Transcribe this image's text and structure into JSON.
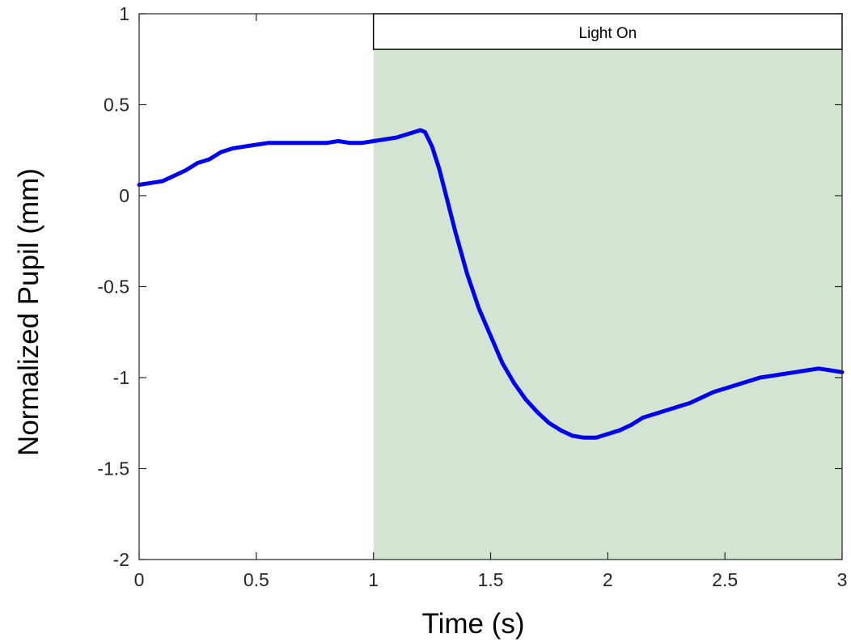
{
  "chart_data": {
    "type": "line",
    "title": "",
    "xlabel": "Time (s)",
    "ylabel": "Normalized Pupil (mm)",
    "xlim": [
      0,
      3
    ],
    "ylim": [
      -2,
      1
    ],
    "xticks": [
      0,
      0.5,
      1,
      1.5,
      2,
      2.5,
      3
    ],
    "yticks": [
      -2,
      -1.5,
      -1,
      -0.5,
      0,
      0.5,
      1
    ],
    "xtick_labels": [
      "0",
      "0.5",
      "1",
      "1.5",
      "2",
      "2.5",
      "3"
    ],
    "ytick_labels": [
      "-2",
      "-1.5",
      "-1",
      "-0.5",
      "0",
      "0.5",
      "1"
    ],
    "grid": false,
    "shaded_region": {
      "x_start": 1,
      "x_end": 3,
      "color": "#d3e4d3",
      "label": "Light On"
    },
    "series": [
      {
        "color": "#0000ee",
        "x": [
          0,
          0.05,
          0.1,
          0.15,
          0.2,
          0.25,
          0.3,
          0.35,
          0.4,
          0.45,
          0.5,
          0.55,
          0.6,
          0.65,
          0.7,
          0.75,
          0.8,
          0.85,
          0.9,
          0.95,
          1.0,
          1.05,
          1.1,
          1.15,
          1.2,
          1.22,
          1.25,
          1.28,
          1.3,
          1.35,
          1.4,
          1.45,
          1.5,
          1.55,
          1.6,
          1.65,
          1.7,
          1.75,
          1.8,
          1.85,
          1.9,
          1.95,
          2.0,
          2.05,
          2.1,
          2.15,
          2.2,
          2.25,
          2.3,
          2.35,
          2.4,
          2.45,
          2.5,
          2.55,
          2.6,
          2.65,
          2.7,
          2.75,
          2.8,
          2.85,
          2.9,
          2.95,
          3.0
        ],
        "y": [
          0.06,
          0.07,
          0.08,
          0.11,
          0.14,
          0.18,
          0.2,
          0.24,
          0.26,
          0.27,
          0.28,
          0.29,
          0.29,
          0.29,
          0.29,
          0.29,
          0.29,
          0.3,
          0.29,
          0.29,
          0.3,
          0.31,
          0.32,
          0.34,
          0.36,
          0.35,
          0.27,
          0.15,
          0.05,
          -0.2,
          -0.43,
          -0.62,
          -0.77,
          -0.92,
          -1.03,
          -1.12,
          -1.19,
          -1.25,
          -1.29,
          -1.32,
          -1.33,
          -1.33,
          -1.31,
          -1.29,
          -1.26,
          -1.22,
          -1.2,
          -1.18,
          -1.16,
          -1.14,
          -1.11,
          -1.08,
          -1.06,
          -1.04,
          -1.02,
          -1.0,
          -0.99,
          -0.98,
          -0.97,
          -0.96,
          -0.95,
          -0.96,
          -0.97
        ]
      }
    ]
  }
}
